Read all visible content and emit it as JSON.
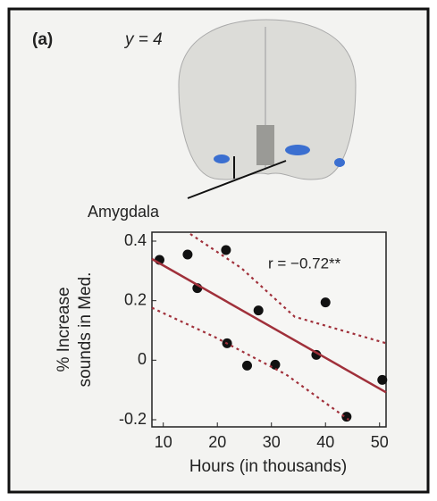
{
  "chart_data": {
    "type": "scatter",
    "panel_label": "(a)",
    "slice_label": "y = 4",
    "region_label": "Amygdala",
    "annotation": "r = −0.72**",
    "xlabel": "Hours (in thousands)",
    "ylabel": [
      "% Increase",
      "sounds in Med."
    ],
    "xlim": [
      7.9,
      51.2
    ],
    "ylim": [
      -0.224,
      0.43
    ],
    "xticks": [
      10,
      20,
      30,
      40,
      50
    ],
    "yticks": [
      -0.2,
      0,
      0.2,
      0.4
    ],
    "series": [
      {
        "kind": "points",
        "color": "#111111",
        "x": [
          9.3,
          14.5,
          16.3,
          21.6,
          21.8,
          27.6,
          25.5,
          30.7,
          38.3,
          40.0,
          43.9,
          50.5
        ],
        "values": [
          0.337,
          0.355,
          0.242,
          0.37,
          0.057,
          0.167,
          -0.018,
          -0.015,
          0.018,
          0.194,
          -0.19,
          -0.066
        ]
      },
      {
        "kind": "fit",
        "color": "#a0303a",
        "x": [
          7.9,
          51.2
        ],
        "values": [
          0.34,
          -0.108
        ]
      },
      {
        "kind": "band",
        "color": "#a0303a",
        "x": [
          15.0,
          24.4,
          34.3,
          51.2
        ],
        "values": [
          0.424,
          0.31,
          0.146,
          0.057
        ]
      },
      {
        "kind": "band",
        "color": "#a0303a",
        "x": [
          7.9,
          19.5,
          32.7,
          44.3
        ],
        "values": [
          0.176,
          0.078,
          -0.048,
          -0.2
        ]
      }
    ]
  }
}
